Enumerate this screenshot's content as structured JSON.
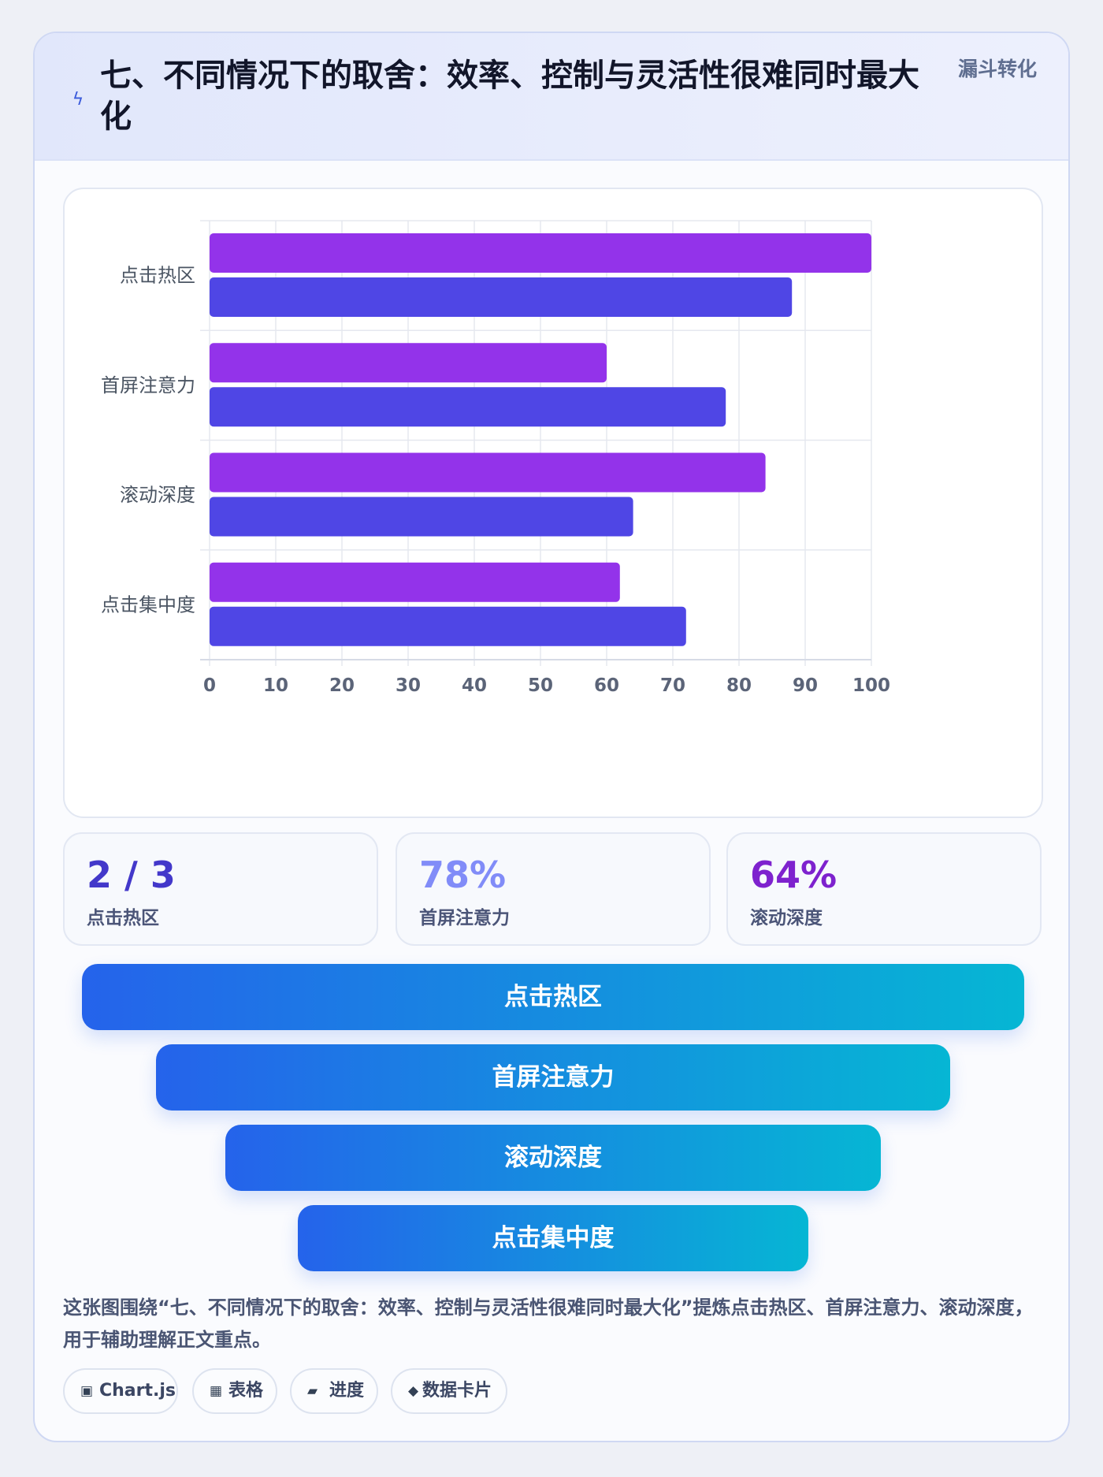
{
  "header": {
    "icon": "lightning-icon",
    "title": "七、不同情况下的取舍：效率、控制与灵活性很难同时最大化",
    "tag": "漏斗转化"
  },
  "chart_data": {
    "type": "bar",
    "orientation": "horizontal",
    "categories": [
      "点击热区",
      "首屏注意力",
      "滚动深度",
      "点击集中度"
    ],
    "series": [
      {
        "values": [
          100,
          60,
          84,
          62
        ],
        "color": "#9333ea"
      },
      {
        "values": [
          88,
          78,
          64,
          72
        ],
        "color": "#4f46e5"
      }
    ],
    "xlim": [
      0,
      100
    ],
    "xticks": [
      0,
      10,
      20,
      30,
      40,
      50,
      60,
      70,
      80,
      90,
      100
    ],
    "grid": true,
    "title": "",
    "xlabel": "",
    "ylabel": ""
  },
  "stats": [
    {
      "value": "2 / 3",
      "label": "点击热区",
      "color": "#4338ca"
    },
    {
      "value": "78%",
      "label": "首屏注意力",
      "color": "#818cf8"
    },
    {
      "value": "64%",
      "label": "滚动深度",
      "color": "#7e22ce"
    }
  ],
  "funnel": [
    "点击热区",
    "首屏注意力",
    "滚动深度",
    "点击集中度"
  ],
  "description": "这张图围绕“七、不同情况下的取舍：效率、控制与灵活性很难同时最大化”提炼点击热区、首屏注意力、滚动深度，用于辅助理解正文重点。",
  "tags": [
    {
      "icon": "▣",
      "icon_name": "chart-icon",
      "label": "Chart.js"
    },
    {
      "icon": "▦",
      "icon_name": "table-icon",
      "label": "表格"
    },
    {
      "icon": "▰",
      "icon_name": "progress-icon",
      "label": "进度"
    },
    {
      "icon": "◆",
      "icon_name": "card-icon",
      "label": "数据卡片"
    }
  ]
}
